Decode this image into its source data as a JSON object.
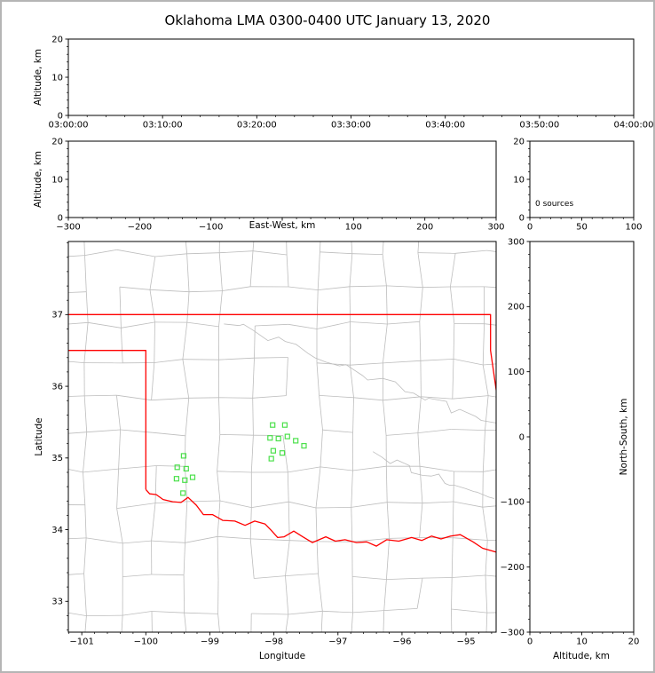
{
  "title": "Oklahoma LMA 0300-0400 UTC January 13, 2020",
  "colors": {
    "background": "#ffffff",
    "frame": "#000000",
    "figure_border": "#b5b5b5",
    "county_lines": "#bdbdbd",
    "state_border": "#ff0000",
    "stations": "#4be04b"
  },
  "chart_data": [
    {
      "id": "alt_time",
      "type": "scatter",
      "title": "",
      "xlabel": "",
      "ylabel": "Altitude, km",
      "points": [],
      "x": {
        "lim": [
          0,
          60
        ],
        "ticks": [
          0,
          10,
          20,
          30,
          40,
          50,
          60
        ],
        "tick_labels": [
          "03:00:00",
          "03:10:00",
          "03:20:00",
          "03:30:00",
          "03:40:00",
          "03:50:00",
          "04:00:00"
        ],
        "minor": 2
      },
      "y": {
        "lim": [
          0,
          20
        ],
        "ticks": [
          0,
          10,
          20
        ],
        "tick_labels": [
          "0",
          "10",
          "20"
        ],
        "minor": 2
      }
    },
    {
      "id": "alt_ew",
      "type": "scatter",
      "title": "",
      "xlabel": "East-West, km",
      "ylabel": "Altitude, km",
      "points": [],
      "x": {
        "lim": [
          -300,
          300
        ],
        "ticks": [
          -300,
          -200,
          -100,
          0,
          100,
          200,
          300
        ],
        "tick_labels": [
          "−300",
          "−200",
          "−100",
          "",
          "100",
          "200",
          "300"
        ],
        "minor": 20
      },
      "y": {
        "lim": [
          0,
          20
        ],
        "ticks": [
          0,
          10,
          20
        ],
        "tick_labels": [
          "0",
          "10",
          "20"
        ],
        "minor": 2
      }
    },
    {
      "id": "src_hist",
      "type": "line",
      "title": "",
      "xlabel": "",
      "ylabel": "",
      "annotation": "0 sources",
      "points": [],
      "x": {
        "lim": [
          0,
          100
        ],
        "ticks": [
          0,
          50,
          100
        ],
        "tick_labels": [
          "0",
          "50",
          "100"
        ],
        "minor": 10
      },
      "y": {
        "lim": [
          0,
          20
        ],
        "ticks": [
          0,
          10,
          20
        ],
        "tick_labels": [
          "0",
          "10",
          "20"
        ],
        "minor": 2
      }
    },
    {
      "id": "plan_map",
      "type": "scatter",
      "title": "",
      "xlabel": "Longitude",
      "ylabel": "Latitude",
      "points": [],
      "x": {
        "lim": [
          -101.21,
          -94.53
        ],
        "ticks": [
          -101,
          -100,
          -99,
          -98,
          -97,
          -96,
          -95
        ],
        "tick_labels": [
          "−101",
          "−100",
          "−99",
          "−98",
          "−97",
          "−96",
          "−95"
        ],
        "minor": 0.2
      },
      "y": {
        "lim": [
          32.57,
          38.02
        ],
        "ticks": [
          33,
          34,
          35,
          36,
          37
        ],
        "tick_labels": [
          "33",
          "34",
          "35",
          "36",
          "37"
        ],
        "minor": 0.2
      },
      "stations": [
        [
          -98.02,
          35.46
        ],
        [
          -97.83,
          35.46
        ],
        [
          -98.06,
          35.28
        ],
        [
          -97.93,
          35.27
        ],
        [
          -97.79,
          35.3
        ],
        [
          -97.66,
          35.24
        ],
        [
          -98.01,
          35.1
        ],
        [
          -97.87,
          35.07
        ],
        [
          -98.04,
          34.99
        ],
        [
          -97.53,
          35.17
        ],
        [
          -99.41,
          35.03
        ],
        [
          -99.51,
          34.87
        ],
        [
          -99.37,
          34.85
        ],
        [
          -99.52,
          34.71
        ],
        [
          -99.39,
          34.69
        ],
        [
          -99.27,
          34.73
        ],
        [
          -99.42,
          34.51
        ]
      ],
      "state_border": [
        [
          [
            -101.3,
            37.0
          ],
          [
            -94.618,
            37.0
          ],
          [
            -94.618,
            36.5
          ],
          [
            -94.45,
            35.45
          ]
        ],
        [
          [
            -101.3,
            36.5
          ],
          [
            -100.0,
            36.5
          ],
          [
            -100.0,
            34.56
          ]
        ],
        [
          [
            -100.0,
            34.56
          ],
          [
            -99.94,
            34.5
          ],
          [
            -99.84,
            34.49
          ],
          [
            -99.73,
            34.42
          ],
          [
            -99.58,
            34.39
          ],
          [
            -99.45,
            34.38
          ],
          [
            -99.34,
            34.45
          ],
          [
            -99.21,
            34.34
          ],
          [
            -99.1,
            34.21
          ],
          [
            -98.96,
            34.21
          ],
          [
            -98.8,
            34.13
          ],
          [
            -98.61,
            34.12
          ],
          [
            -98.45,
            34.06
          ],
          [
            -98.3,
            34.12
          ],
          [
            -98.14,
            34.08
          ],
          [
            -98.04,
            33.99
          ],
          [
            -97.94,
            33.89
          ],
          [
            -97.84,
            33.9
          ],
          [
            -97.69,
            33.98
          ],
          [
            -97.55,
            33.9
          ],
          [
            -97.4,
            33.82
          ],
          [
            -97.19,
            33.9
          ],
          [
            -97.04,
            33.84
          ],
          [
            -96.89,
            33.86
          ],
          [
            -96.71,
            33.82
          ],
          [
            -96.55,
            33.83
          ],
          [
            -96.4,
            33.77
          ],
          [
            -96.24,
            33.86
          ],
          [
            -96.05,
            33.84
          ],
          [
            -95.85,
            33.89
          ],
          [
            -95.69,
            33.85
          ],
          [
            -95.54,
            33.91
          ],
          [
            -95.39,
            33.87
          ],
          [
            -95.24,
            33.91
          ],
          [
            -95.09,
            33.93
          ],
          [
            -94.89,
            33.83
          ],
          [
            -94.74,
            33.74
          ],
          [
            -94.5,
            33.68
          ]
        ]
      ]
    },
    {
      "id": "ns_alt",
      "type": "scatter",
      "title": "",
      "xlabel": "Altitude, km",
      "ylabel": "North-South, km",
      "points": [],
      "x": {
        "lim": [
          0,
          20
        ],
        "ticks": [
          0,
          10,
          20
        ],
        "tick_labels": [
          "0",
          "10",
          "20"
        ],
        "minor": 2
      },
      "y": {
        "lim": [
          -300,
          300
        ],
        "ticks": [
          -300,
          -200,
          -100,
          0,
          100,
          200,
          300
        ],
        "tick_labels": [
          "−300",
          "−200",
          "−100",
          "0",
          "100",
          "200",
          "300"
        ],
        "minor": 20
      }
    }
  ]
}
